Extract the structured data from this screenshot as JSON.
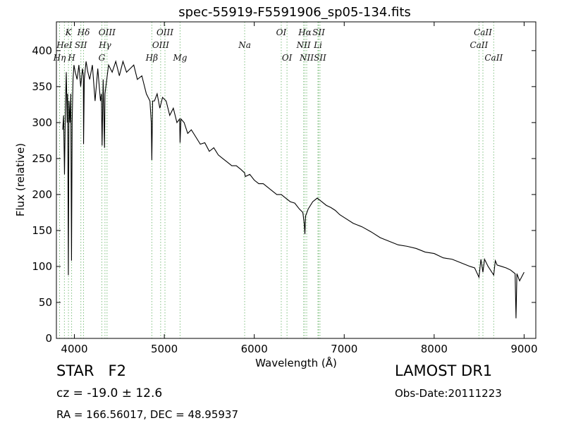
{
  "chart_data": {
    "type": "line",
    "title": "spec-55919-F5591906_sp05-134.fits",
    "xlabel": "Wavelength (Å)",
    "ylabel": "Flux (relative)",
    "xlim": [
      3800,
      9130
    ],
    "ylim": [
      0,
      440
    ],
    "xticks": [
      4000,
      5000,
      6000,
      7000,
      8000,
      9000
    ],
    "yticks": [
      0,
      50,
      100,
      150,
      200,
      250,
      300,
      350,
      400
    ],
    "grid": false,
    "line_color": "#000000",
    "marker_color": "#7fbf7f",
    "series": [
      {
        "x": [
          3870,
          3880,
          3890,
          3900,
          3910,
          3920,
          3925,
          3933,
          3940,
          3950,
          3960,
          3968,
          3975,
          3985,
          3995,
          4010,
          4030,
          4050,
          4070,
          4090,
          4100,
          4102,
          4110,
          4130,
          4150,
          4170,
          4200,
          4230,
          4260,
          4290,
          4300,
          4308,
          4320,
          4335,
          4340,
          4350,
          4380,
          4420,
          4460,
          4500,
          4540,
          4580,
          4620,
          4660,
          4700,
          4750,
          4800,
          4840,
          4855,
          4861,
          4870,
          4890,
          4920,
          4950,
          4980,
          5020,
          5060,
          5100,
          5140,
          5170,
          5175,
          5185,
          5220,
          5260,
          5300,
          5350,
          5400,
          5450,
          5500,
          5550,
          5600,
          5650,
          5700,
          5750,
          5800,
          5850,
          5893,
          5900,
          5950,
          6000,
          6050,
          6100,
          6150,
          6200,
          6250,
          6300,
          6350,
          6400,
          6450,
          6500,
          6540,
          6555,
          6563,
          6570,
          6600,
          6650,
          6700,
          6750,
          6800,
          6850,
          6900,
          6950,
          7000,
          7100,
          7200,
          7300,
          7400,
          7500,
          7600,
          7700,
          7800,
          7900,
          8000,
          8100,
          8200,
          8300,
          8400,
          8450,
          8498,
          8520,
          8542,
          8560,
          8600,
          8662,
          8680,
          8700,
          8750,
          8800,
          8850,
          8900,
          8910,
          8920,
          8950,
          9000
        ],
        "y": [
          290,
          310,
          228,
          320,
          370,
          300,
          340,
          88,
          330,
          300,
          340,
          108,
          300,
          360,
          380,
          370,
          360,
          380,
          350,
          375,
          365,
          270,
          360,
          385,
          370,
          360,
          380,
          330,
          375,
          330,
          340,
          268,
          360,
          265,
          340,
          350,
          380,
          370,
          385,
          365,
          385,
          370,
          375,
          380,
          360,
          365,
          340,
          330,
          300,
          248,
          330,
          330,
          340,
          320,
          335,
          330,
          310,
          320,
          300,
          305,
          272,
          305,
          300,
          285,
          290,
          280,
          270,
          272,
          260,
          265,
          255,
          250,
          245,
          240,
          240,
          235,
          230,
          225,
          228,
          220,
          215,
          215,
          210,
          205,
          200,
          200,
          195,
          190,
          188,
          180,
          175,
          160,
          145,
          170,
          180,
          190,
          195,
          190,
          185,
          182,
          178,
          172,
          168,
          160,
          155,
          148,
          140,
          135,
          130,
          128,
          125,
          120,
          118,
          112,
          110,
          105,
          100,
          98,
          85,
          110,
          92,
          110,
          100,
          88,
          108,
          102,
          100,
          98,
          95,
          90,
          28,
          90,
          80,
          92
        ]
      }
    ],
    "lines": [
      {
        "label": "Hη",
        "x": 3835,
        "row": 3
      },
      {
        "label": "K",
        "x": 3934,
        "row": 1
      },
      {
        "label": "HeI",
        "x": 3889,
        "row": 2
      },
      {
        "label": "H",
        "x": 3969,
        "row": 3
      },
      {
        "label": "SII",
        "x": 4072,
        "row": 2
      },
      {
        "label": "Hδ",
        "x": 4102,
        "row": 1
      },
      {
        "label": "OIII",
        "x": 4363,
        "row": 1
      },
      {
        "label": "Hγ",
        "x": 4340,
        "row": 2
      },
      {
        "label": "G",
        "x": 4305,
        "row": 3
      },
      {
        "label": "Hβ",
        "x": 4861,
        "row": 3
      },
      {
        "label": "OIII",
        "x": 4959,
        "row": 2
      },
      {
        "label": "OIII",
        "x": 5007,
        "row": 1
      },
      {
        "label": "Mg",
        "x": 5175,
        "row": 3
      },
      {
        "label": "Na",
        "x": 5893,
        "row": 2
      },
      {
        "label": "OI",
        "x": 6300,
        "row": 1
      },
      {
        "label": "OI",
        "x": 6364,
        "row": 3
      },
      {
        "label": "NII",
        "x": 6548,
        "row": 2
      },
      {
        "label": "Hα",
        "x": 6563,
        "row": 1
      },
      {
        "label": "NII",
        "x": 6583,
        "row": 3
      },
      {
        "label": "Li",
        "x": 6708,
        "row": 2
      },
      {
        "label": "SII",
        "x": 6716,
        "row": 1
      },
      {
        "label": "SII",
        "x": 6731,
        "row": 3
      },
      {
        "label": "CaII",
        "x": 8498,
        "row": 2
      },
      {
        "label": "CaII",
        "x": 8542,
        "row": 1
      },
      {
        "label": "CaII",
        "x": 8662,
        "row": 3
      }
    ]
  },
  "info": {
    "class_label": "STAR",
    "subclass": "F2",
    "cz": "cz = -19.0 ± 12.6",
    "coords": "RA = 166.56017, DEC = 48.95937",
    "survey": "LAMOST DR1",
    "obs_date": "Obs-Date:20111223"
  }
}
